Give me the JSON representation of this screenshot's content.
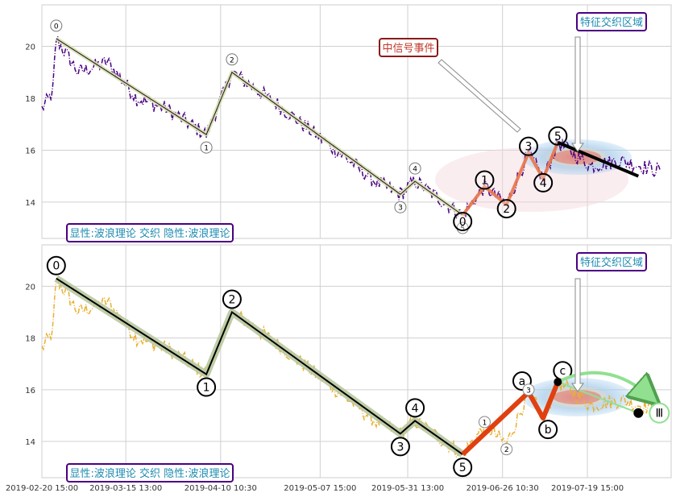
{
  "chart_data": [
    {
      "type": "line",
      "panel": "top",
      "ylim": [
        12.6,
        21.6
      ],
      "yticks": [
        14,
        16,
        18,
        20
      ],
      "grid": true,
      "price_color": "#4b0082",
      "wave_line_color": "#1a1a1a",
      "wave_fill_color": "#d9dfb2",
      "major_wave": {
        "labels": [
          "0",
          "1",
          "2",
          "3",
          "4",
          "5"
        ],
        "x": [
          "2019-02-24 13:00",
          "2019-04-06 13:00",
          "2019-04-13 13:00",
          "2019-05-29 13:00",
          "2019-06-02 13:00",
          "2019-06-15 13:00"
        ],
        "y": [
          20.3,
          16.6,
          19.0,
          14.3,
          14.8,
          13.5
        ]
      },
      "sub_wave": {
        "color": "#e8754a",
        "labels": [
          "0",
          "1",
          "2",
          "3",
          "4",
          "5"
        ],
        "x": [
          "2019-06-15 13:00",
          "2019-06-21 13:00",
          "2019-06-27 13:00",
          "2019-07-03 13:00",
          "2019-07-07 13:00",
          "2019-07-11 13:00"
        ],
        "y": [
          13.5,
          14.6,
          13.9,
          15.9,
          14.9,
          16.3
        ]
      },
      "trend_line": {
        "color": "#000000",
        "x": [
          "2019-07-11 13:00",
          "2019-08-02 13:00"
        ],
        "y": [
          16.3,
          15.0
        ]
      },
      "annotations": {
        "signal_event": "中信号事件",
        "feature_region": "特征交织区域",
        "footer": "显性:波浪理论 交织 隐性:波浪理论"
      }
    },
    {
      "type": "line",
      "panel": "bottom",
      "ylim": [
        12.6,
        21.6
      ],
      "yticks": [
        14,
        16,
        18,
        20
      ],
      "grid": true,
      "price_color": "#e8b030",
      "wave_line_color": "#000000",
      "wave_fill_color": "#b8c8a0",
      "major_wave": {
        "labels": [
          "0",
          "1",
          "2",
          "3",
          "4",
          "5"
        ],
        "x": [
          "2019-02-24 13:00",
          "2019-04-06 13:00",
          "2019-04-13 13:00",
          "2019-05-29 13:00",
          "2019-06-02 13:00",
          "2019-06-15 13:00"
        ],
        "y": [
          20.3,
          16.6,
          19.0,
          14.3,
          14.8,
          13.5
        ]
      },
      "abc_wave": {
        "color": "#e04010",
        "labels": [
          "a",
          "b",
          "c"
        ],
        "x": [
          "2019-06-15 13:00",
          "2019-07-03 13:00",
          "2019-07-07 13:00",
          "2019-07-11 13:00"
        ],
        "y": [
          13.5,
          15.9,
          14.9,
          16.3
        ]
      },
      "minor_labels": [
        "1",
        "2",
        "3"
      ],
      "target_label": "Ⅲ",
      "target_point": {
        "x": "2019-08-02 13:00",
        "y": 15.1
      },
      "annotations": {
        "feature_region": "特征交织区域",
        "footer": "显性:波浪理论 交织 隐性:波浪理论"
      }
    }
  ],
  "x_axis": {
    "tick_labels": [
      "2019-02-20 15:00",
      "2019-03-15 13:00",
      "2019-04-10 10:30",
      "2019-05-07 15:00",
      "2019-05-31 13:00",
      "2019-06-26 10:30",
      "2019-07-19 15:00"
    ]
  }
}
